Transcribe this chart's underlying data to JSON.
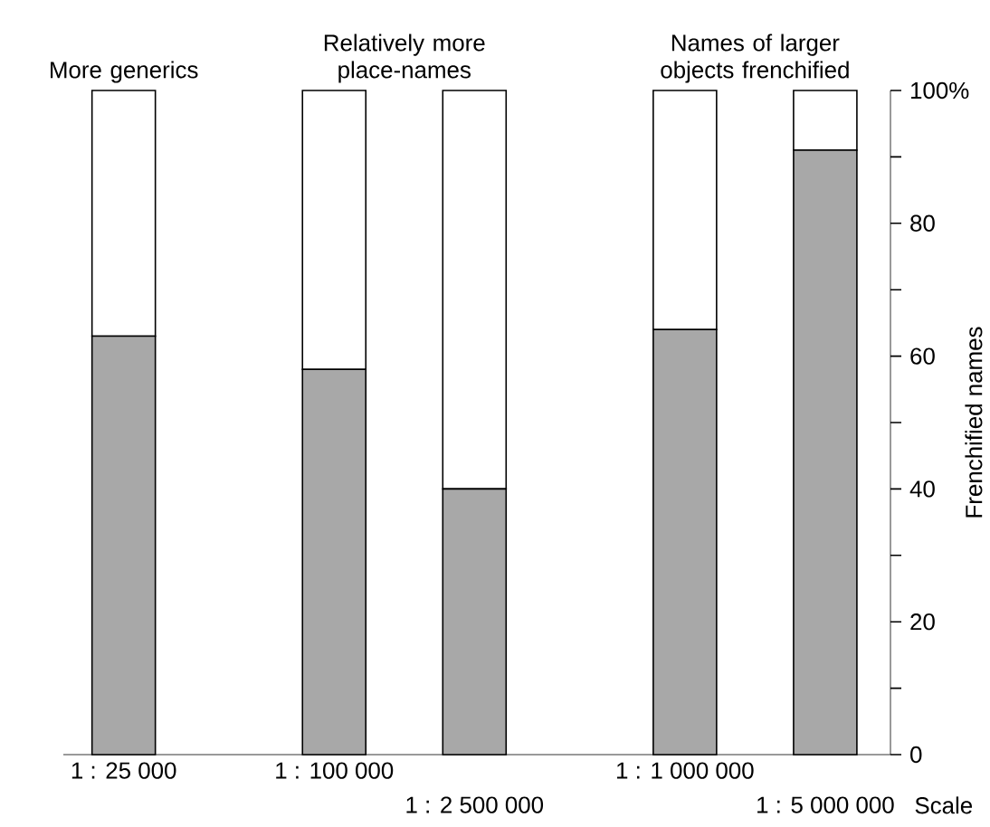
{
  "chart_data": {
    "type": "bar",
    "stacked": true,
    "categories": [
      "1 : 25 000",
      null,
      null,
      "1 : 100 000",
      null,
      "1 : 2 500 000",
      null,
      null,
      "1 : 1 000 000",
      null,
      "1 : 5 000 000"
    ],
    "series": [
      {
        "color": "#a8a8a8",
        "values": [
          63,
          null,
          null,
          58,
          null,
          40,
          null,
          null,
          64,
          null,
          91
        ]
      },
      {
        "color": "#ffffff",
        "values": [
          37,
          null,
          null,
          42,
          null,
          60,
          null,
          null,
          36,
          null,
          9
        ]
      }
    ],
    "xlabel": "Scale",
    "ylabel": "Frenchified names",
    "ylim": [
      0,
      100
    ],
    "yticks": [
      0,
      {
        "value": 10,
        "label": null
      },
      20,
      {
        "value": 30,
        "label": null
      },
      40,
      {
        "value": 50,
        "label": null
      },
      60,
      {
        "value": 70,
        "label": null
      },
      80,
      {
        "value": 90,
        "label": null
      },
      {
        "value": 100,
        "label": "100%"
      }
    ],
    "annotations": [
      "More generics",
      "Relatively more place-names",
      "Names of larger objects frenchified"
    ],
    "grid": false
  }
}
